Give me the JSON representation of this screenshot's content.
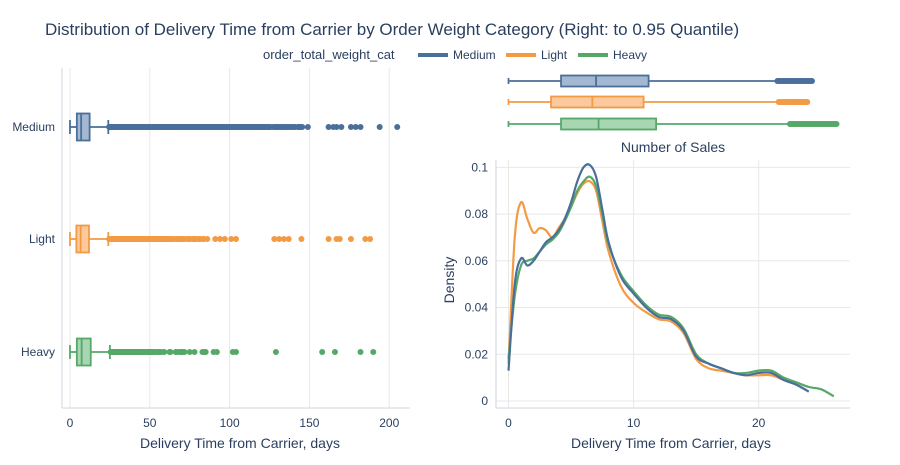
{
  "title": "Distribution of Delivery Time from Carrier by Order Weight Category (Right: to 0.95 Quantile)",
  "legend": {
    "title": "order_total_weight_cat",
    "position": "top-center",
    "items": [
      {
        "name": "Medium",
        "color": "#4a6f9a"
      },
      {
        "name": "Light",
        "color": "#f39a45"
      },
      {
        "name": "Heavy",
        "color": "#55a868"
      }
    ]
  },
  "colors": {
    "Medium": {
      "line": "#4a6f9a",
      "fill": "#a4b8d2"
    },
    "Light": {
      "line": "#f39a45",
      "fill": "#fcc99d"
    },
    "Heavy": {
      "line": "#55a868",
      "fill": "#a8d6b2"
    },
    "grid": "#e8e8e8",
    "axis_text": "#2a3f5f"
  },
  "chart_data": [
    {
      "type": "box",
      "orientation": "horizontal",
      "xlabel": "Delivery Time from Carrier, days",
      "xlim": [
        -5,
        213
      ],
      "xticks": [
        0,
        50,
        100,
        150,
        200
      ],
      "grid": true,
      "categories": [
        "Medium",
        "Light",
        "Heavy"
      ],
      "series": [
        {
          "name": "Medium",
          "q1": 4.3,
          "median": 7.0,
          "q3": 12.3,
          "lower_fence": 0,
          "upper_fence": 24,
          "outlier_range": [
            24,
            146
          ],
          "outliers": [
            149,
            162,
            165,
            167,
            170,
            176,
            179,
            182,
            194,
            205
          ]
        },
        {
          "name": "Light",
          "q1": 4.0,
          "median": 6.7,
          "q3": 11.9,
          "lower_fence": 0,
          "upper_fence": 24,
          "outlier_range": [
            24,
            84
          ],
          "outliers": [
            86,
            91,
            94,
            97,
            101,
            104,
            128,
            131,
            134,
            137,
            145,
            162,
            167,
            169,
            176,
            185,
            188
          ]
        },
        {
          "name": "Heavy",
          "q1": 4.3,
          "median": 7.3,
          "q3": 13.0,
          "lower_fence": 0,
          "upper_fence": 25,
          "outlier_range": [
            25,
            72
          ],
          "outliers": [
            75,
            78,
            83,
            84,
            85,
            90,
            92,
            102,
            104,
            129,
            158,
            166,
            182,
            190
          ]
        }
      ]
    },
    {
      "type": "box",
      "orientation": "horizontal",
      "subplot": "marginal",
      "xlim": [
        -1,
        27.3
      ],
      "categories": [
        "Medium",
        "Light",
        "Heavy"
      ],
      "series": [
        {
          "name": "Medium",
          "min": 0,
          "q1": 4.2,
          "median": 7.0,
          "q3": 11.2,
          "upper_fence": 21.5,
          "max": 24.3
        },
        {
          "name": "Light",
          "min": 0,
          "q1": 3.4,
          "median": 6.7,
          "q3": 10.8,
          "upper_fence": 21.6,
          "max": 24.0
        },
        {
          "name": "Heavy",
          "min": 0,
          "q1": 4.2,
          "median": 7.2,
          "q3": 11.8,
          "upper_fence": 22.5,
          "max": 26.3
        }
      ]
    },
    {
      "type": "line",
      "title": "Number of Sales",
      "xlabel": "Delivery Time from Carrier, days",
      "ylabel": "Density",
      "xlim": [
        -1,
        27.3
      ],
      "ylim": [
        -0.003,
        0.107
      ],
      "xticks": [
        0,
        10,
        20
      ],
      "yticks": [
        0,
        0.02,
        0.04,
        0.06,
        0.08,
        0.1
      ],
      "grid": true,
      "series": [
        {
          "name": "Medium",
          "x": [
            0,
            0.5,
            1,
            1.5,
            2,
            2.5,
            3,
            3.5,
            4,
            4.5,
            5,
            5.5,
            6,
            6.5,
            7,
            7.5,
            8,
            9,
            10,
            11,
            12,
            13,
            14,
            15,
            16,
            17,
            18,
            19,
            20,
            21,
            22,
            23,
            24
          ],
          "y": [
            0.013,
            0.05,
            0.061,
            0.058,
            0.06,
            0.064,
            0.068,
            0.07,
            0.073,
            0.078,
            0.085,
            0.094,
            0.1,
            0.101,
            0.096,
            0.082,
            0.068,
            0.053,
            0.046,
            0.04,
            0.036,
            0.035,
            0.03,
            0.019,
            0.016,
            0.014,
            0.012,
            0.011,
            0.012,
            0.012,
            0.009,
            0.007,
            0.004
          ]
        },
        {
          "name": "Light",
          "x": [
            0,
            0.5,
            1,
            1.5,
            2,
            2.5,
            3,
            3.5,
            4,
            4.5,
            5,
            5.5,
            6,
            6.5,
            7,
            7.5,
            8,
            9,
            10,
            11,
            12,
            13,
            14,
            15,
            16,
            17,
            18,
            19,
            20,
            21,
            22,
            23,
            24
          ],
          "y": [
            0.016,
            0.07,
            0.085,
            0.078,
            0.072,
            0.074,
            0.073,
            0.07,
            0.074,
            0.078,
            0.083,
            0.089,
            0.093,
            0.094,
            0.09,
            0.077,
            0.064,
            0.049,
            0.042,
            0.038,
            0.035,
            0.034,
            0.029,
            0.018,
            0.014,
            0.013,
            0.012,
            0.011,
            0.011,
            0.011,
            0.009,
            0.007,
            0.004
          ]
        },
        {
          "name": "Heavy",
          "x": [
            0,
            0.5,
            1,
            1.5,
            2,
            2.5,
            3,
            3.5,
            4,
            4.5,
            5,
            5.5,
            6,
            6.5,
            7,
            7.5,
            8,
            9,
            10,
            11,
            12,
            13,
            14,
            15,
            16,
            17,
            18,
            19,
            20,
            21,
            22,
            23,
            24,
            25,
            26
          ],
          "y": [
            0.018,
            0.045,
            0.058,
            0.06,
            0.061,
            0.064,
            0.067,
            0.069,
            0.072,
            0.077,
            0.083,
            0.09,
            0.094,
            0.096,
            0.092,
            0.08,
            0.067,
            0.054,
            0.047,
            0.041,
            0.037,
            0.036,
            0.031,
            0.02,
            0.016,
            0.014,
            0.012,
            0.012,
            0.013,
            0.013,
            0.01,
            0.008,
            0.006,
            0.005,
            0.002
          ]
        }
      ]
    }
  ]
}
